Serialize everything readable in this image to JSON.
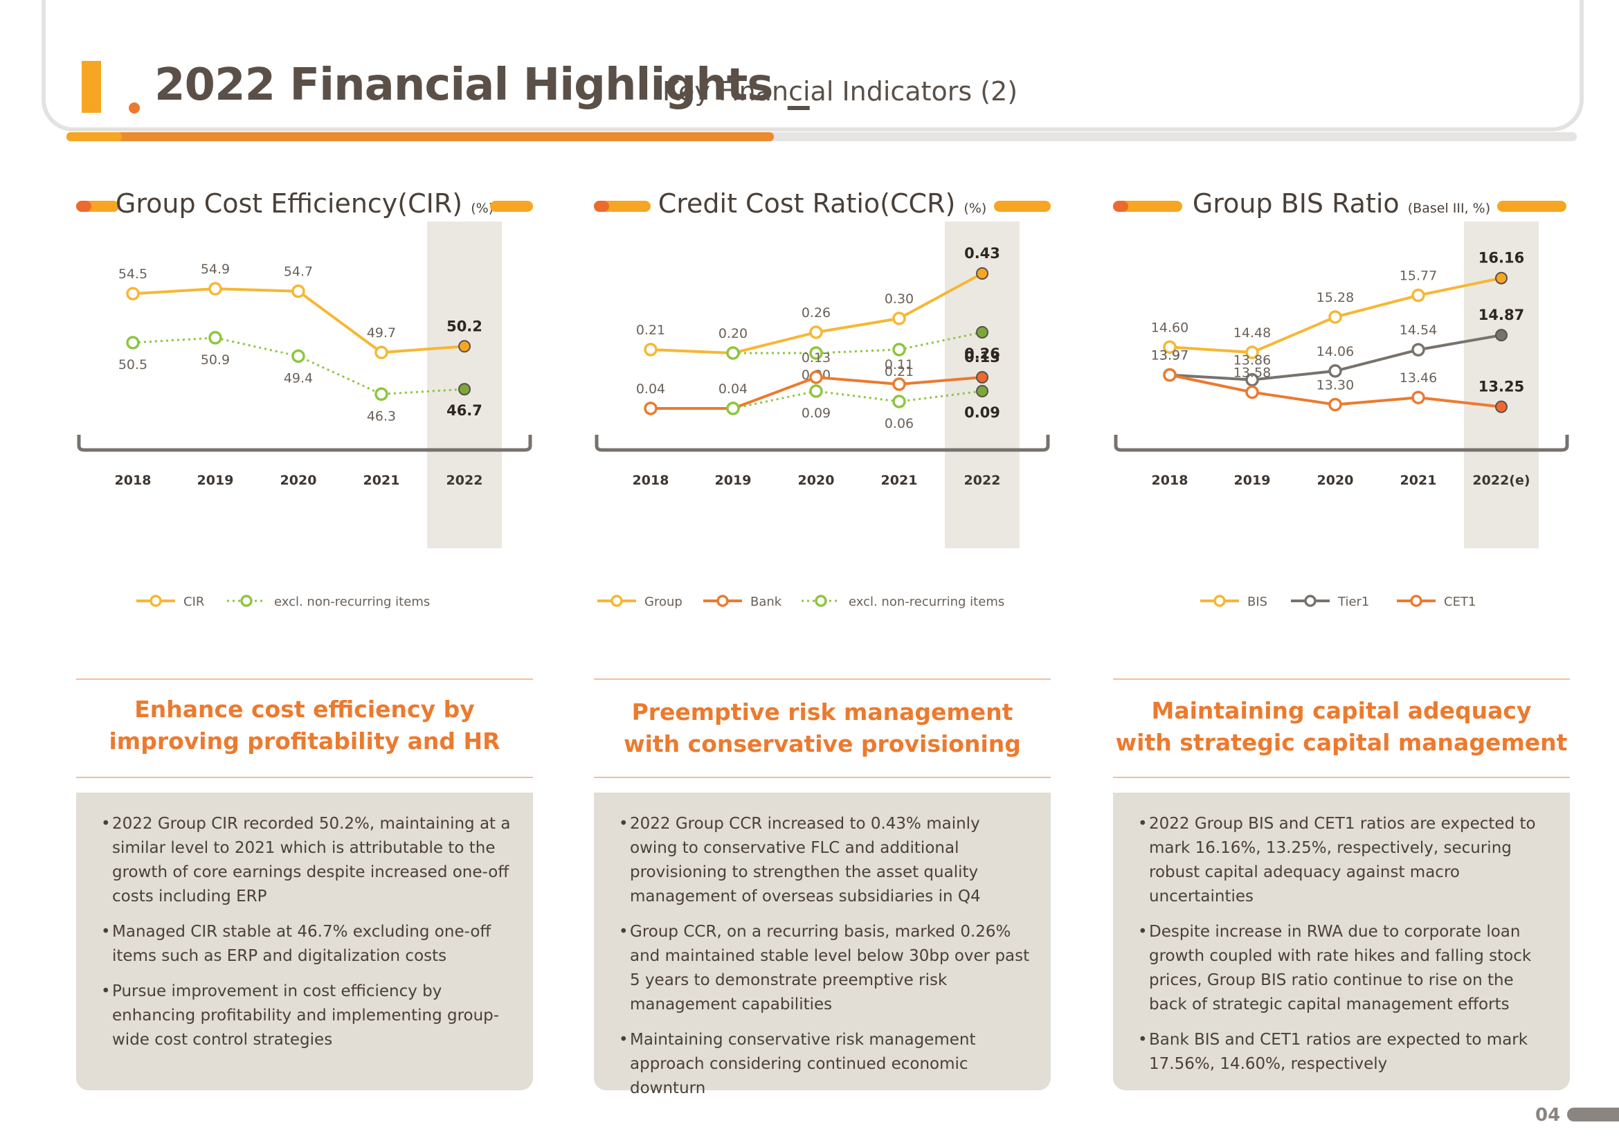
{
  "header": {
    "title": "2022 Financial Highlights _",
    "subtitle": "Key Financial Indicators (2)"
  },
  "colors": {
    "orange": "#ec7a2e",
    "yellow": "#f6b733",
    "green": "#8dc63f",
    "gray": "#77726d",
    "highlight": "#ebe8e2"
  },
  "panels": [
    {
      "title": "Group Cost Efficiency(CIR)",
      "unit": "(%)",
      "headline": [
        "Enhance cost efficiency by",
        "improving profitability and HR"
      ],
      "bullets": [
        "2022 Group CIR recorded 50.2%, maintaining at a similar level to 2021 which is attributable to the growth of core earnings despite increased one-off costs including ERP",
        "Managed CIR stable at 46.7% excluding one-off items such as ERP and digitalization costs",
        "Pursue improvement in cost efficiency by enhancing profitability and implementing group-wide cost control strategies"
      ]
    },
    {
      "title": "Credit Cost Ratio(CCR)",
      "unit": "(%)",
      "headline": [
        "Preemptive risk management",
        "with conservative provisioning"
      ],
      "bullets": [
        "2022 Group CCR increased to 0.43% mainly owing to conservative FLC and additional provisioning to strengthen the asset quality management of overseas subsidiaries in Q4",
        "Group CCR, on a recurring basis, marked 0.26% and maintained stable level below 30bp over past 5 years to demonstrate preemptive risk management capabilities",
        "Maintaining conservative risk management approach considering continued economic downturn"
      ]
    },
    {
      "title": "Group BIS Ratio",
      "unit": "(Basel III, %)",
      "headline": [
        "Maintaining capital adequacy",
        "with strategic capital management"
      ],
      "bullets": [
        "2022 Group BIS and CET1 ratios are expected to mark 16.16%, 13.25%, respectively, securing robust capital adequacy against macro uncertainties",
        "Despite increase in RWA due to corporate loan growth coupled with rate hikes and falling stock prices, Group BIS ratio continue to rise on the back of strategic capital management efforts",
        "Bank BIS and CET1 ratios are expected to mark 17.56%, 14.60%, respectively"
      ]
    }
  ],
  "chart_data": [
    {
      "type": "line",
      "title": "Group Cost Efficiency(CIR)",
      "x": [
        "2018",
        "2019",
        "2020",
        "2021",
        "2022"
      ],
      "ylim": [
        44,
        57
      ],
      "series": [
        {
          "name": "CIR",
          "color": "#f6b733",
          "style": "solid",
          "values": [
            54.5,
            54.9,
            54.7,
            49.7,
            50.2
          ],
          "labels": [
            "54.5",
            "54.9",
            "54.7",
            "49.7",
            "50.2"
          ],
          "labelPos": [
            "above",
            "above",
            "above",
            "above",
            "above"
          ],
          "lastFill": "#f6a623"
        },
        {
          "name": "excl. non-recurring items",
          "color": "#8dc63f",
          "style": "dotted",
          "values": [
            50.5,
            50.9,
            49.4,
            46.3,
            46.7
          ],
          "labels": [
            "50.5",
            "50.9",
            "49.4",
            "46.3",
            "46.7"
          ],
          "labelPos": [
            "below",
            "below",
            "below",
            "below",
            "below"
          ],
          "lastFill": "#7aa83a"
        }
      ]
    },
    {
      "type": "line",
      "title": "Credit Cost Ratio(CCR)",
      "x": [
        "2018",
        "2019",
        "2020",
        "2021",
        "2022"
      ],
      "ylim": [
        0.0,
        0.46
      ],
      "series": [
        {
          "name": "Group",
          "color": "#f6b733",
          "style": "solid",
          "values": [
            0.21,
            0.2,
            0.26,
            0.3,
            0.43
          ],
          "labels": [
            "0.21",
            "0.20",
            "0.26",
            "0.30",
            "0.43"
          ],
          "labelPos": [
            "above",
            "above",
            "above",
            "above",
            "above"
          ],
          "lastFill": "#f6a623"
        },
        {
          "name": "excl. non-recurring items",
          "color": "#8dc63f",
          "style": "dotted",
          "values": [
            null,
            0.2,
            0.2,
            0.21,
            0.26
          ],
          "labels": [
            "",
            "",
            "0.20",
            "0.21",
            "0.26"
          ],
          "labelPos": [
            "below",
            "below",
            "below",
            "below",
            "below"
          ],
          "lastFill": "#7aa83a"
        },
        {
          "name": "Bank",
          "color": "#ec7a2e",
          "style": "solid",
          "values": [
            0.04,
            0.04,
            0.13,
            0.11,
            0.13
          ],
          "labels": [
            "0.04",
            "0.04",
            "0.13",
            "0.11",
            "0.13"
          ],
          "labelPos": [
            "above",
            "above",
            "above",
            "above",
            "above"
          ],
          "lastFill": "#ec6a2e"
        },
        {
          "name": "excl. non-recurring items",
          "color": "#8dc63f",
          "style": "dotted",
          "values": [
            null,
            0.04,
            0.09,
            0.06,
            0.09
          ],
          "labels": [
            "",
            "",
            "0.09",
            "0.06",
            "0.09"
          ],
          "labelPos": [
            "below",
            "below",
            "below",
            "below",
            "below"
          ],
          "lastFill": "#7aa83a"
        }
      ]
    },
    {
      "type": "line",
      "title": "Group BIS Ratio",
      "x": [
        "2018",
        "2019",
        "2020",
        "2021",
        "2022(e)"
      ],
      "ylim": [
        12.9,
        16.5
      ],
      "series": [
        {
          "name": "BIS",
          "color": "#f6b733",
          "style": "solid",
          "values": [
            14.6,
            14.48,
            15.28,
            15.77,
            16.16
          ],
          "labels": [
            "14.60",
            "14.48",
            "15.28",
            "15.77",
            "16.16"
          ],
          "labelPos": [
            "above",
            "above",
            "above",
            "above",
            "above"
          ],
          "lastFill": "#f6a623"
        },
        {
          "name": "Tier1",
          "color": "#77726d",
          "style": "solid",
          "values": [
            13.97,
            13.86,
            14.06,
            14.54,
            14.87
          ],
          "labels": [
            "13.97",
            "13.86",
            "14.06",
            "14.54",
            "14.87"
          ],
          "labelPos": [
            "above",
            "above",
            "above",
            "above",
            "above"
          ],
          "lastFill": "#77726d"
        },
        {
          "name": "CET1",
          "color": "#ec7a2e",
          "style": "solid",
          "values": [
            13.97,
            13.58,
            13.3,
            13.46,
            13.25
          ],
          "labels": [
            "13.97",
            "13.58",
            "13.30",
            "13.46",
            "13.25"
          ],
          "labelPos": [
            "above",
            "above",
            "above",
            "above",
            "above"
          ],
          "lastFill": "#ec6a2e"
        }
      ]
    }
  ],
  "legends": [
    [
      {
        "label": "CIR",
        "color": "#f6b733",
        "style": "solid"
      },
      {
        "label": "excl. non-recurring items",
        "color": "#8dc63f",
        "style": "dotted"
      }
    ],
    [
      {
        "label": "Group",
        "color": "#f6b733",
        "style": "solid"
      },
      {
        "label": "Bank",
        "color": "#ec7a2e",
        "style": "solid"
      },
      {
        "label": "excl. non-recurring items",
        "color": "#8dc63f",
        "style": "dotted"
      }
    ],
    [
      {
        "label": "BIS",
        "color": "#f6b733",
        "style": "solid"
      },
      {
        "label": "Tier1",
        "color": "#77726d",
        "style": "solid"
      },
      {
        "label": "CET1",
        "color": "#ec7a2e",
        "style": "solid"
      }
    ]
  ],
  "page_number": "04"
}
